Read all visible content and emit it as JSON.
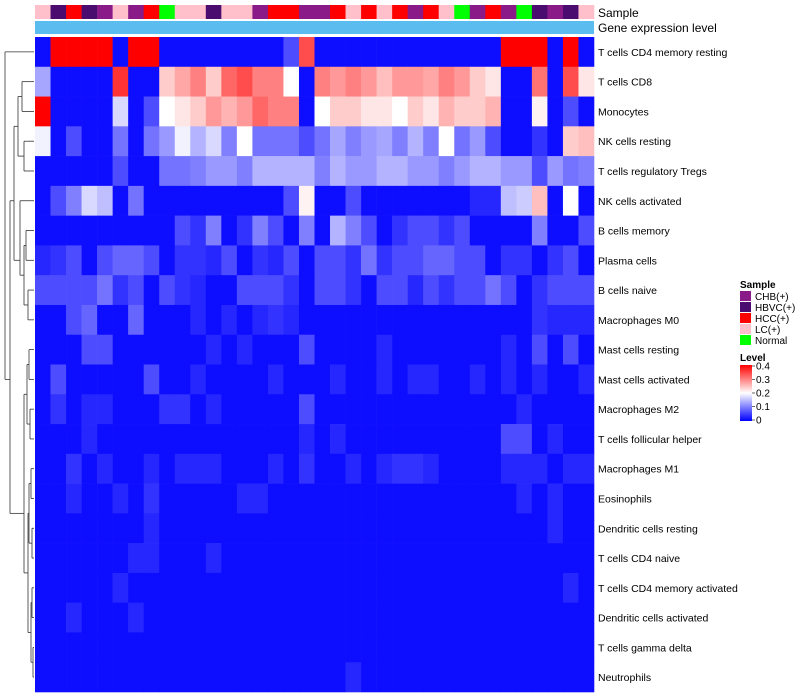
{
  "chart_data": {
    "type": "heatmap",
    "title": "",
    "annotation_labels": {
      "sample": "Sample",
      "expression": "Gene expression level"
    },
    "sample_colors": {
      "CHB(+)": "#8b1a89",
      "HBVC(+)": "#4b0c70",
      "HCC(+)": "#ff0000",
      "LC(+)": "#ffc0cb",
      "Normal": "#00ff00"
    },
    "expression_bar_color": "#5bbcf0",
    "sample_groups": [
      "LC(+)",
      "HBVC(+)",
      "HCC(+)",
      "HBVC(+)",
      "CHB(+)",
      "LC(+)",
      "CHB(+)",
      "HCC(+)",
      "Normal",
      "LC(+)",
      "LC(+)",
      "HBVC(+)",
      "LC(+)",
      "LC(+)",
      "CHB(+)",
      "HCC(+)",
      "HCC(+)",
      "CHB(+)",
      "CHB(+)",
      "HCC(+)",
      "LC(+)",
      "HCC(+)",
      "LC(+)",
      "HCC(+)",
      "CHB(+)",
      "HCC(+)",
      "LC(+)",
      "Normal",
      "CHB(+)",
      "HCC(+)",
      "CHB(+)",
      "Normal",
      "HBVC(+)",
      "CHB(+)",
      "HBVC(+)",
      "LC(+)"
    ],
    "rows": [
      "T cells CD4 memory resting",
      "T cells CD8",
      "Monocytes",
      "NK cells resting",
      "T cells regulatory  Tregs",
      "NK cells activated",
      "B cells memory",
      "Plasma cells",
      "B cells naive",
      "Macrophages M0",
      "Mast cells resting",
      "Mast cells activated",
      "Macrophages M2",
      "T cells follicular helper",
      "Macrophages M1",
      "Eosinophils",
      "Dendritic cells resting",
      "T cells CD4 naive",
      "T cells CD4 memory activated",
      "Dendritic cells activated",
      "T cells gamma delta",
      "Neutrophils"
    ],
    "values": [
      [
        0.01,
        0.4,
        0.4,
        0.4,
        0.4,
        0.01,
        0.4,
        0.4,
        0.01,
        0.01,
        0.01,
        0.01,
        0.01,
        0.01,
        0.01,
        0.01,
        0.06,
        0.34,
        0.01,
        0.01,
        0.01,
        0.01,
        0.01,
        0.01,
        0.01,
        0.01,
        0.01,
        0.01,
        0.01,
        0.01,
        0.4,
        0.4,
        0.4,
        0.01,
        0.4,
        0.01
      ],
      [
        0.13,
        0.01,
        0.01,
        0.01,
        0.01,
        0.36,
        0.01,
        0.01,
        0.24,
        0.27,
        0.3,
        0.24,
        0.32,
        0.34,
        0.3,
        0.3,
        0.2,
        0.01,
        0.3,
        0.28,
        0.3,
        0.28,
        0.25,
        0.28,
        0.28,
        0.27,
        0.3,
        0.28,
        0.24,
        0.22,
        0.01,
        0.01,
        0.31,
        0.01,
        0.34,
        0.22
      ],
      [
        0.4,
        0.01,
        0.01,
        0.01,
        0.01,
        0.17,
        0.01,
        0.06,
        0.2,
        0.22,
        0.24,
        0.28,
        0.26,
        0.28,
        0.32,
        0.3,
        0.3,
        0.01,
        0.2,
        0.24,
        0.24,
        0.22,
        0.22,
        0.2,
        0.24,
        0.22,
        0.26,
        0.24,
        0.24,
        0.26,
        0.01,
        0.01,
        0.21,
        0.01,
        0.06,
        0.01
      ],
      [
        0.19,
        0.01,
        0.06,
        0.01,
        0.01,
        0.09,
        0.01,
        0.09,
        0.12,
        0.19,
        0.14,
        0.17,
        0.1,
        0.2,
        0.09,
        0.09,
        0.09,
        0.06,
        0.09,
        0.13,
        0.1,
        0.12,
        0.13,
        0.1,
        0.14,
        0.1,
        0.2,
        0.09,
        0.12,
        0.06,
        0.01,
        0.01,
        0.04,
        0.01,
        0.24,
        0.25
      ],
      [
        0.01,
        0.01,
        0.01,
        0.01,
        0.01,
        0.06,
        0.01,
        0.01,
        0.09,
        0.09,
        0.1,
        0.12,
        0.12,
        0.1,
        0.14,
        0.14,
        0.14,
        0.14,
        0.1,
        0.14,
        0.12,
        0.12,
        0.14,
        0.14,
        0.12,
        0.12,
        0.1,
        0.12,
        0.14,
        0.14,
        0.12,
        0.12,
        0.06,
        0.12,
        0.09,
        0.1
      ],
      [
        0.01,
        0.06,
        0.1,
        0.17,
        0.15,
        0.01,
        0.09,
        0.01,
        0.01,
        0.01,
        0.01,
        0.01,
        0.01,
        0.01,
        0.01,
        0.01,
        0.06,
        0.21,
        0.01,
        0.01,
        0.06,
        0.01,
        0.01,
        0.01,
        0.01,
        0.01,
        0.01,
        0.01,
        0.03,
        0.03,
        0.15,
        0.16,
        0.25,
        0.01,
        0.2,
        0.01
      ],
      [
        0.01,
        0.01,
        0.01,
        0.01,
        0.01,
        0.01,
        0.01,
        0.01,
        0.01,
        0.06,
        0.04,
        0.1,
        0.01,
        0.04,
        0.1,
        0.06,
        0.01,
        0.1,
        0.01,
        0.14,
        0.1,
        0.06,
        0.01,
        0.04,
        0.06,
        0.06,
        0.04,
        0.06,
        0.01,
        0.01,
        0.01,
        0.01,
        0.1,
        0.01,
        0.01,
        0.06
      ],
      [
        0.03,
        0.04,
        0.06,
        0.01,
        0.06,
        0.08,
        0.08,
        0.06,
        0.01,
        0.04,
        0.04,
        0.03,
        0.06,
        0.01,
        0.04,
        0.03,
        0.06,
        0.01,
        0.06,
        0.06,
        0.04,
        0.09,
        0.04,
        0.06,
        0.06,
        0.08,
        0.08,
        0.06,
        0.06,
        0.01,
        0.04,
        0.04,
        0.01,
        0.04,
        0.06,
        0.01
      ],
      [
        0.06,
        0.06,
        0.06,
        0.06,
        0.09,
        0.04,
        0.06,
        0.01,
        0.06,
        0.04,
        0.03,
        0.01,
        0.01,
        0.06,
        0.06,
        0.06,
        0.04,
        0.01,
        0.06,
        0.06,
        0.04,
        0.01,
        0.06,
        0.06,
        0.03,
        0.06,
        0.04,
        0.06,
        0.06,
        0.09,
        0.06,
        0.01,
        0.04,
        0.06,
        0.06,
        0.06
      ],
      [
        0.01,
        0.01,
        0.06,
        0.08,
        0.01,
        0.01,
        0.08,
        0.01,
        0.01,
        0.01,
        0.03,
        0.01,
        0.03,
        0.01,
        0.03,
        0.04,
        0.03,
        0.01,
        0.01,
        0.01,
        0.01,
        0.01,
        0.01,
        0.01,
        0.01,
        0.01,
        0.01,
        0.01,
        0.01,
        0.01,
        0.01,
        0.01,
        0.04,
        0.03,
        0.03,
        0.03
      ],
      [
        0.01,
        0.01,
        0.01,
        0.06,
        0.06,
        0.01,
        0.01,
        0.01,
        0.01,
        0.01,
        0.01,
        0.03,
        0.01,
        0.03,
        0.01,
        0.01,
        0.01,
        0.06,
        0.01,
        0.01,
        0.01,
        0.01,
        0.03,
        0.01,
        0.01,
        0.01,
        0.01,
        0.01,
        0.01,
        0.01,
        0.03,
        0.01,
        0.06,
        0.01,
        0.06,
        0.01
      ],
      [
        0.01,
        0.06,
        0.01,
        0.01,
        0.01,
        0.01,
        0.01,
        0.06,
        0.01,
        0.01,
        0.03,
        0.01,
        0.01,
        0.01,
        0.01,
        0.03,
        0.01,
        0.01,
        0.01,
        0.03,
        0.01,
        0.01,
        0.03,
        0.01,
        0.03,
        0.03,
        0.01,
        0.01,
        0.03,
        0.01,
        0.03,
        0.01,
        0.03,
        0.01,
        0.01,
        0.03
      ],
      [
        0.01,
        0.04,
        0.01,
        0.03,
        0.03,
        0.01,
        0.01,
        0.01,
        0.04,
        0.04,
        0.01,
        0.03,
        0.01,
        0.01,
        0.01,
        0.01,
        0.01,
        0.06,
        0.01,
        0.01,
        0.01,
        0.01,
        0.01,
        0.01,
        0.01,
        0.01,
        0.01,
        0.01,
        0.01,
        0.01,
        0.01,
        0.03,
        0.01,
        0.01,
        0.01,
        0.01
      ],
      [
        0.01,
        0.01,
        0.01,
        0.03,
        0.01,
        0.01,
        0.01,
        0.01,
        0.01,
        0.01,
        0.01,
        0.01,
        0.01,
        0.01,
        0.01,
        0.01,
        0.01,
        0.03,
        0.01,
        0.03,
        0.01,
        0.01,
        0.01,
        0.01,
        0.01,
        0.01,
        0.01,
        0.01,
        0.01,
        0.01,
        0.06,
        0.06,
        0.01,
        0.03,
        0.01,
        0.01
      ],
      [
        0.01,
        0.01,
        0.04,
        0.01,
        0.03,
        0.01,
        0.01,
        0.03,
        0.01,
        0.03,
        0.03,
        0.03,
        0.01,
        0.01,
        0.01,
        0.03,
        0.01,
        0.04,
        0.01,
        0.01,
        0.03,
        0.01,
        0.03,
        0.04,
        0.04,
        0.03,
        0.01,
        0.01,
        0.01,
        0.01,
        0.03,
        0.03,
        0.03,
        0.01,
        0.03,
        0.03
      ],
      [
        0.01,
        0.01,
        0.03,
        0.01,
        0.01,
        0.03,
        0.01,
        0.04,
        0.01,
        0.01,
        0.01,
        0.01,
        0.01,
        0.03,
        0.03,
        0.01,
        0.01,
        0.01,
        0.01,
        0.01,
        0.01,
        0.01,
        0.01,
        0.01,
        0.01,
        0.01,
        0.01,
        0.01,
        0.01,
        0.01,
        0.01,
        0.03,
        0.01,
        0.03,
        0.01,
        0.01
      ],
      [
        0.01,
        0.01,
        0.01,
        0.01,
        0.01,
        0.01,
        0.01,
        0.03,
        0.01,
        0.01,
        0.01,
        0.01,
        0.01,
        0.01,
        0.01,
        0.01,
        0.01,
        0.01,
        0.01,
        0.01,
        0.01,
        0.01,
        0.01,
        0.01,
        0.01,
        0.01,
        0.01,
        0.01,
        0.01,
        0.01,
        0.01,
        0.01,
        0.01,
        0.03,
        0.01,
        0.01
      ],
      [
        0.01,
        0.01,
        0.01,
        0.01,
        0.01,
        0.01,
        0.03,
        0.03,
        0.01,
        0.01,
        0.01,
        0.03,
        0.01,
        0.01,
        0.01,
        0.01,
        0.01,
        0.01,
        0.01,
        0.01,
        0.01,
        0.01,
        0.01,
        0.01,
        0.01,
        0.01,
        0.01,
        0.01,
        0.01,
        0.01,
        0.01,
        0.01,
        0.01,
        0.01,
        0.01,
        0.01
      ],
      [
        0.01,
        0.01,
        0.01,
        0.01,
        0.01,
        0.03,
        0.01,
        0.01,
        0.01,
        0.01,
        0.01,
        0.01,
        0.01,
        0.01,
        0.01,
        0.01,
        0.01,
        0.01,
        0.01,
        0.01,
        0.01,
        0.01,
        0.01,
        0.01,
        0.01,
        0.01,
        0.01,
        0.01,
        0.01,
        0.01,
        0.01,
        0.01,
        0.01,
        0.01,
        0.03,
        0.01
      ],
      [
        0.01,
        0.01,
        0.03,
        0.01,
        0.01,
        0.01,
        0.03,
        0.01,
        0.01,
        0.01,
        0.01,
        0.01,
        0.01,
        0.01,
        0.01,
        0.01,
        0.01,
        0.01,
        0.01,
        0.01,
        0.01,
        0.01,
        0.01,
        0.01,
        0.01,
        0.01,
        0.01,
        0.01,
        0.01,
        0.01,
        0.01,
        0.01,
        0.01,
        0.01,
        0.01,
        0.01
      ],
      [
        0.01,
        0.01,
        0.01,
        0.01,
        0.01,
        0.01,
        0.01,
        0.01,
        0.01,
        0.01,
        0.01,
        0.01,
        0.01,
        0.01,
        0.01,
        0.01,
        0.01,
        0.01,
        0.01,
        0.01,
        0.01,
        0.01,
        0.01,
        0.01,
        0.01,
        0.01,
        0.01,
        0.01,
        0.01,
        0.01,
        0.01,
        0.01,
        0.01,
        0.01,
        0.01,
        0.01
      ],
      [
        0.01,
        0.01,
        0.01,
        0.01,
        0.01,
        0.01,
        0.01,
        0.01,
        0.01,
        0.01,
        0.01,
        0.01,
        0.01,
        0.01,
        0.01,
        0.01,
        0.01,
        0.01,
        0.01,
        0.01,
        0.03,
        0.01,
        0.01,
        0.01,
        0.01,
        0.01,
        0.01,
        0.01,
        0.01,
        0.01,
        0.01,
        0.01,
        0.01,
        0.01,
        0.01,
        0.01
      ]
    ],
    "color_scale": {
      "min": 0,
      "max": 0.4,
      "low": "#0000ff",
      "mid": "#ffffff",
      "high": "#ff0000",
      "mid_value": 0.2
    },
    "legend": {
      "sample_title": "Sample",
      "sample_items": [
        "CHB(+)",
        "HBVC(+)",
        "HCC(+)",
        "LC(+)",
        "Normal"
      ],
      "level_title": "Level",
      "level_ticks": [
        "0.4",
        "0.3",
        "0.2",
        "0.1",
        "0"
      ],
      "placement": "right-middle"
    }
  }
}
